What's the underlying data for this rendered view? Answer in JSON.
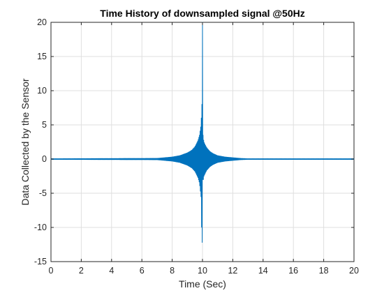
{
  "chart_data": {
    "type": "line",
    "title": "Time History of downsampled signal @50Hz",
    "xlabel": "Time (Sec)",
    "ylabel": "Data Collected by the Sensor",
    "xlim": [
      0,
      20
    ],
    "ylim": [
      -15,
      20
    ],
    "xticks": [
      0,
      2,
      4,
      6,
      8,
      10,
      12,
      14,
      16,
      18,
      20
    ],
    "yticks": [
      -15,
      -10,
      -5,
      0,
      5,
      10,
      15,
      20
    ],
    "grid": true,
    "line_color": "#0072bd",
    "series": [
      {
        "sample_rate_hz": 50,
        "x": [
          0,
          7.0,
          7.5,
          8.0,
          8.5,
          9.0,
          9.3,
          9.5,
          9.7,
          9.8,
          9.9,
          9.96,
          10.0,
          10.02,
          10.04,
          10.06,
          10.1,
          10.2,
          10.3,
          10.5,
          10.7,
          11.0,
          11.5,
          12.0,
          12.5,
          13.0,
          20
        ],
        "y_envelope_pos": [
          0.05,
          0.1,
          0.2,
          0.3,
          0.5,
          0.9,
          1.3,
          1.8,
          2.7,
          3.5,
          5.0,
          8.0,
          20.0,
          8.0,
          3.5,
          3.0,
          2.5,
          2.0,
          1.6,
          1.1,
          0.8,
          0.5,
          0.3,
          0.2,
          0.1,
          0.05,
          0.05
        ],
        "y_envelope_neg": [
          -0.05,
          -0.1,
          -0.2,
          -0.3,
          -0.5,
          -0.9,
          -1.3,
          -1.8,
          -2.7,
          -3.5,
          -5.5,
          -12.2,
          -12.2,
          -3.0,
          -3.5,
          -3.0,
          -2.5,
          -2.0,
          -1.6,
          -1.1,
          -0.8,
          -0.5,
          -0.3,
          -0.2,
          -0.1,
          -0.05,
          -0.05
        ]
      }
    ]
  }
}
